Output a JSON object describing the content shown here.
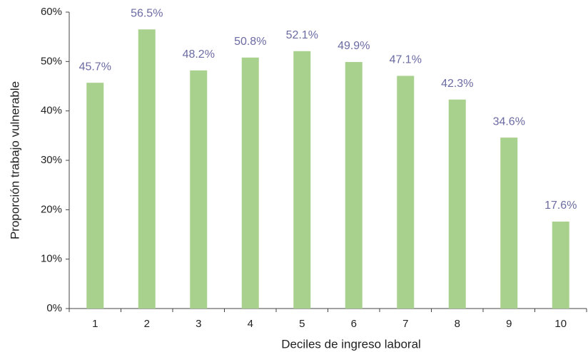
{
  "chart_data": {
    "type": "bar",
    "y_label": "Proporción trabajo vulnerable",
    "x_label": "Deciles de ingreso laboral",
    "categories": [
      "1",
      "2",
      "3",
      "4",
      "5",
      "6",
      "7",
      "8",
      "9",
      "10"
    ],
    "values": [
      45.7,
      56.5,
      48.2,
      50.8,
      52.1,
      49.9,
      47.1,
      42.3,
      34.6,
      17.6
    ],
    "value_labels": [
      "45.7%",
      "56.5%",
      "48.2%",
      "50.8%",
      "52.1%",
      "49.9%",
      "47.1%",
      "42.3%",
      "34.6%",
      "17.6%"
    ],
    "color": "#a9d18e",
    "ylim": [
      0,
      60
    ],
    "yticks": [
      {
        "value": 0,
        "label": "0%"
      },
      {
        "value": 10,
        "label": "10%"
      },
      {
        "value": 20,
        "label": "20%"
      },
      {
        "value": 30,
        "label": "30%"
      },
      {
        "value": 40,
        "label": "40%"
      },
      {
        "value": 50,
        "label": "50%"
      },
      {
        "value": 60,
        "label": "60%"
      }
    ],
    "grid": false
  }
}
